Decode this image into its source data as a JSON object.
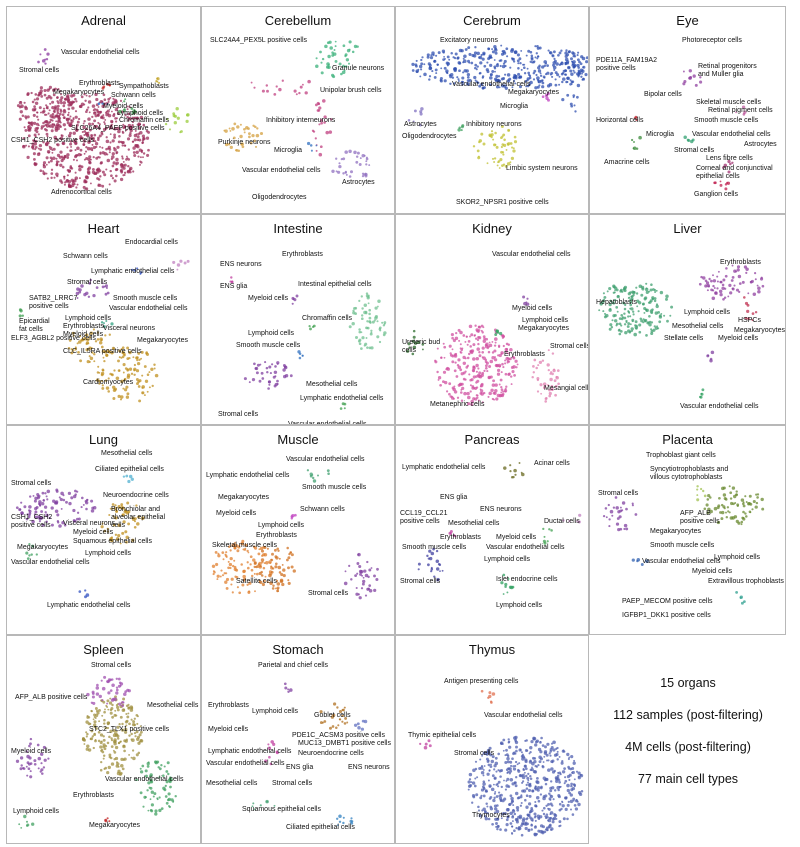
{
  "panels": [
    {
      "title": "Adrenal",
      "labels": [
        "Vascular endothelial cells",
        "Stromal cells",
        "Sympathoblasts",
        "Erythroblasts",
        "Megakaryocytes",
        "Schwann cells",
        "Myeloid cells",
        "Lymphoid cells",
        "Chromaffin cells",
        "SLC26A4_PAEP positive cells",
        "CSH1_CSH2 positive cells",
        "Adrenocortical cells"
      ]
    },
    {
      "title": "Cerebellum",
      "labels": [
        "SLC24A4_PEX5L positive cells",
        "Granule neurons",
        "Unipolar brush cells",
        "Inhibitory interneurons",
        "Purkinje neurons",
        "Microglia",
        "Vascular endothelial cells",
        "Astrocytes",
        "Oligodendrocytes"
      ]
    },
    {
      "title": "Cerebrum",
      "labels": [
        "Excitatory neurons",
        "Vascular endothelial cells",
        "Megakaryocytes",
        "Microglia",
        "Astrocytes",
        "Inhibitory neurons",
        "Oligodendrocytes",
        "Limbic system neurons",
        "SKOR2_NPSR1 positive cells"
      ]
    },
    {
      "title": "Eye",
      "labels": [
        "Photoreceptor cells",
        "PDE11A_FAM19A2\npositive cells",
        "Retinal progenitors\nand Muller glia",
        "Bipolar cells",
        "Skeletal muscle cells",
        "Retinal pigment cells",
        "Horizontal cells",
        "Smooth muscle cells",
        "Microglia",
        "Vascular endothelial cells",
        "Astrocytes",
        "Stromal cells",
        "Amacrine cells",
        "Lens fibre cells",
        "Corneal and conjunctival\nepithelial cells",
        "Ganglion cells"
      ]
    },
    {
      "title": "Heart",
      "labels": [
        "Endocardial cells",
        "Schwann cells",
        "Lymphatic endothelial cells",
        "Stromal cells",
        "SATB2_LRRC7\npositive cells",
        "Smooth muscle cells",
        "Vascular endothelial cells",
        "Epicardial\nfat cells",
        "Lymphoid cells",
        "Erythroblasts",
        "Myeloid cells",
        "Visceral neurons",
        "Megakaryocytes",
        "ELF3_AGBL2 positive cells",
        "CLC_IL5RA positive cells",
        "Cardiomyocytes"
      ]
    },
    {
      "title": "Intestine",
      "labels": [
        "Erythroblasts",
        "ENS neurons",
        "Intestinal epithelial cells",
        "ENS glia",
        "Myeloid cells",
        "Chromaffin cells",
        "Lymphoid cells",
        "Smooth muscle cells",
        "Mesothelial cells",
        "Lymphatic endothelial cells",
        "Stromal cells",
        "Vascular endothelial cells"
      ]
    },
    {
      "title": "Kidney",
      "labels": [
        "Vascular endothelial cells",
        "Myeloid cells",
        "Lymphoid cells",
        "Megakaryocytes",
        "Ureteric bud\ncells",
        "Stromal cells",
        "Erythroblasts",
        "Mesangial cells",
        "Metanephric cells"
      ]
    },
    {
      "title": "Liver",
      "labels": [
        "Erythroblasts",
        "Hepatoblasts",
        "Lymphoid cells",
        "HSPCs",
        "Mesothelial cells",
        "Megakaryocytes",
        "Stellate cells",
        "Myeloid cells",
        "Vascular endothelial cells"
      ]
    },
    {
      "title": "Lung",
      "labels": [
        "Mesothelial cells",
        "Ciliated epithelial cells",
        "Stromal cells",
        "Neuroendocrine cells",
        "Bronchiolar and\nalveolar epithelial\ncells",
        "CSH1_CSH2\npositive cells",
        "Visceral neurons",
        "Myeloid cells",
        "Squamous epithelial cells",
        "Megakaryocytes",
        "Lymphoid cells",
        "Vascular endothelial cells",
        "Lymphatic endothelial cells"
      ]
    },
    {
      "title": "Muscle",
      "labels": [
        "Vascular endothelial cells",
        "Lymphatic endothelial cells",
        "Smooth muscle cells",
        "Megakaryocytes",
        "Schwann cells",
        "Myeloid cells",
        "Lymphoid cells",
        "Erythroblasts",
        "Skeletal muscle cells",
        "Satellite cells",
        "Stromal cells"
      ]
    },
    {
      "title": "Pancreas",
      "labels": [
        "Lymphatic endothelial cells",
        "Acinar cells",
        "ENS glia",
        "ENS neurons",
        "CCL19_CCL21\npositive cells",
        "Mesothelial cells",
        "Ductal cells",
        "Erythroblasts",
        "Myeloid cells",
        "Smooth muscle cells",
        "Vascular endothelial cells",
        "Lymphoid cells",
        "Stromal cells",
        "Islet endocrine cells",
        "Lymphoid cells"
      ]
    },
    {
      "title": "Placenta",
      "labels": [
        "Trophoblast giant cells",
        "Syncytiotrophoblasts and\nvillous cytotrophoblasts",
        "Stromal cells",
        "AFP_ALB\npositive cells",
        "Megakaryocytes",
        "Smooth muscle cells",
        "Lymphoid cells",
        "Vascular endothelial cells",
        "Myeloid cells",
        "Extravillous trophoblasts",
        "PAEP_MECOM positive cells",
        "IGFBP1_DKK1 positive cells"
      ]
    },
    {
      "title": "Spleen",
      "labels": [
        "Stromal cells",
        "AFP_ALB positive cells",
        "Mesothelial cells",
        "STC2_TLX1 positive cells",
        "Myeloid cells",
        "Vascular endothelial cells",
        "Erythroblasts",
        "Lymphoid cells",
        "Megakaryocytes"
      ]
    },
    {
      "title": "Stomach",
      "labels": [
        "Parietal and chief cells",
        "Erythroblasts",
        "Lymphoid cells",
        "Goblet cells",
        "Myeloid cells",
        "PDE1C_ACSM3 positive cells",
        "MUC13_DMBT1 positive cells",
        "Lymphatic endothelial cells",
        "Neuroendocrine cells",
        "Vascular endothelial cells",
        "ENS glia",
        "ENS neurons",
        "Mesothelial cells",
        "Stromal cells",
        "Squamous epithelial cells",
        "Ciliated epithelial cells"
      ]
    },
    {
      "title": "Thymus",
      "labels": [
        "Antigen presenting cells",
        "Vascular endothelial cells",
        "Thymic epithelial cells",
        "Stromal cells",
        "Thymocytes"
      ]
    }
  ],
  "summary": [
    "15 organs",
    "112 samples (post-filtering)",
    "4M cells (post-filtering)",
    "77 main cell types"
  ]
}
